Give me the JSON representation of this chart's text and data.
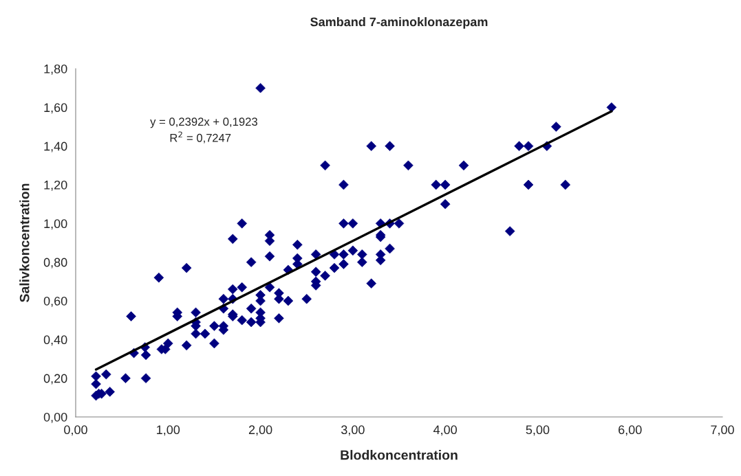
{
  "chart_data": {
    "type": "scatter",
    "title": "Samband 7-aminoklonazepam",
    "xlabel": "Blodkoncentration",
    "ylabel": "Salivkoncentration",
    "annotations": [
      "y = 0,2392x + 0,1923",
      "R$^{2}$ = 0,7247"
    ],
    "xlim": [
      0,
      7
    ],
    "ylim": [
      0,
      1.8
    ],
    "xticks": [
      {
        "value": 0,
        "label": "0,00"
      },
      {
        "value": 1,
        "label": "1,00"
      },
      {
        "value": 2,
        "label": "2,00"
      },
      {
        "value": 3,
        "label": "3,00"
      },
      {
        "value": 4,
        "label": "4,00"
      },
      {
        "value": 5,
        "label": "5,00"
      },
      {
        "value": 6,
        "label": "6,00"
      },
      {
        "value": 7,
        "label": "7,00"
      }
    ],
    "yticks": [
      {
        "value": 0,
        "label": "0,00"
      },
      {
        "value": 0.2,
        "label": "0,20"
      },
      {
        "value": 0.4,
        "label": "0,40"
      },
      {
        "value": 0.6,
        "label": "0,60"
      },
      {
        "value": 0.8,
        "label": "0,80"
      },
      {
        "value": 1.0,
        "label": "1,00"
      },
      {
        "value": 1.2,
        "label": "1,20"
      },
      {
        "value": 1.4,
        "label": "1,40"
      },
      {
        "value": 1.6,
        "label": "1,60"
      },
      {
        "value": 1.8,
        "label": "1,80"
      }
    ],
    "grid": false,
    "legend": false,
    "series": [
      {
        "marker": "diamond",
        "color": "#000080",
        "x": [
          0.22,
          0.25,
          0.28,
          0.37,
          0.22,
          0.22,
          0.33,
          0.54,
          0.76,
          0.63,
          0.76,
          0.75,
          0.6,
          0.9,
          0.93,
          0.97,
          1.0,
          1.1,
          1.1,
          1.2,
          1.2,
          1.3,
          1.3,
          1.3,
          1.3,
          1.4,
          1.5,
          1.5,
          1.6,
          1.6,
          1.6,
          1.6,
          1.7,
          1.7,
          1.7,
          1.7,
          1.7,
          1.8,
          1.8,
          1.8,
          1.9,
          1.9,
          1.9,
          2.0,
          2.0,
          2.0,
          2.0,
          2.0,
          2.0,
          2.1,
          2.1,
          2.1,
          2.1,
          2.2,
          2.2,
          2.2,
          2.3,
          2.3,
          2.4,
          2.4,
          2.4,
          2.5,
          2.6,
          2.6,
          2.6,
          2.6,
          2.7,
          2.7,
          2.8,
          2.8,
          2.9,
          2.9,
          2.9,
          2.9,
          3.0,
          3.0,
          3.1,
          3.1,
          3.2,
          3.2,
          3.3,
          3.3,
          3.3,
          3.3,
          3.3,
          3.4,
          3.4,
          3.4,
          3.5,
          3.6,
          3.9,
          4.0,
          4.0,
          4.2,
          4.7,
          4.8,
          4.9,
          4.9,
          5.1,
          5.2,
          5.3,
          5.8
        ],
        "values": [
          0.11,
          0.12,
          0.12,
          0.13,
          0.17,
          0.21,
          0.22,
          0.2,
          0.2,
          0.33,
          0.32,
          0.36,
          0.52,
          0.72,
          0.35,
          0.35,
          0.38,
          0.52,
          0.54,
          0.37,
          0.77,
          0.43,
          0.47,
          0.49,
          0.54,
          0.43,
          0.38,
          0.47,
          0.45,
          0.47,
          0.56,
          0.61,
          0.52,
          0.53,
          0.61,
          0.66,
          0.92,
          0.5,
          0.67,
          1.0,
          0.49,
          0.56,
          0.8,
          0.49,
          0.51,
          0.54,
          0.6,
          0.63,
          1.7,
          0.67,
          0.83,
          0.91,
          0.94,
          0.51,
          0.61,
          0.64,
          0.6,
          0.76,
          0.79,
          0.82,
          0.89,
          0.61,
          0.68,
          0.7,
          0.75,
          0.84,
          0.73,
          1.3,
          0.77,
          0.84,
          0.79,
          0.84,
          1.0,
          1.2,
          0.86,
          1.0,
          0.8,
          0.84,
          0.69,
          1.4,
          0.81,
          0.84,
          0.93,
          0.94,
          1.0,
          0.87,
          1.0,
          1.4,
          1.0,
          1.3,
          1.2,
          1.1,
          1.2,
          1.3,
          0.96,
          1.4,
          1.2,
          1.4,
          1.4,
          1.5,
          1.2,
          1.6
        ]
      },
      {
        "type": "line",
        "color": "#000000",
        "line_style": "solid",
        "x": [
          0.22,
          5.8
        ],
        "values": [
          0.245,
          1.58
        ]
      }
    ]
  }
}
